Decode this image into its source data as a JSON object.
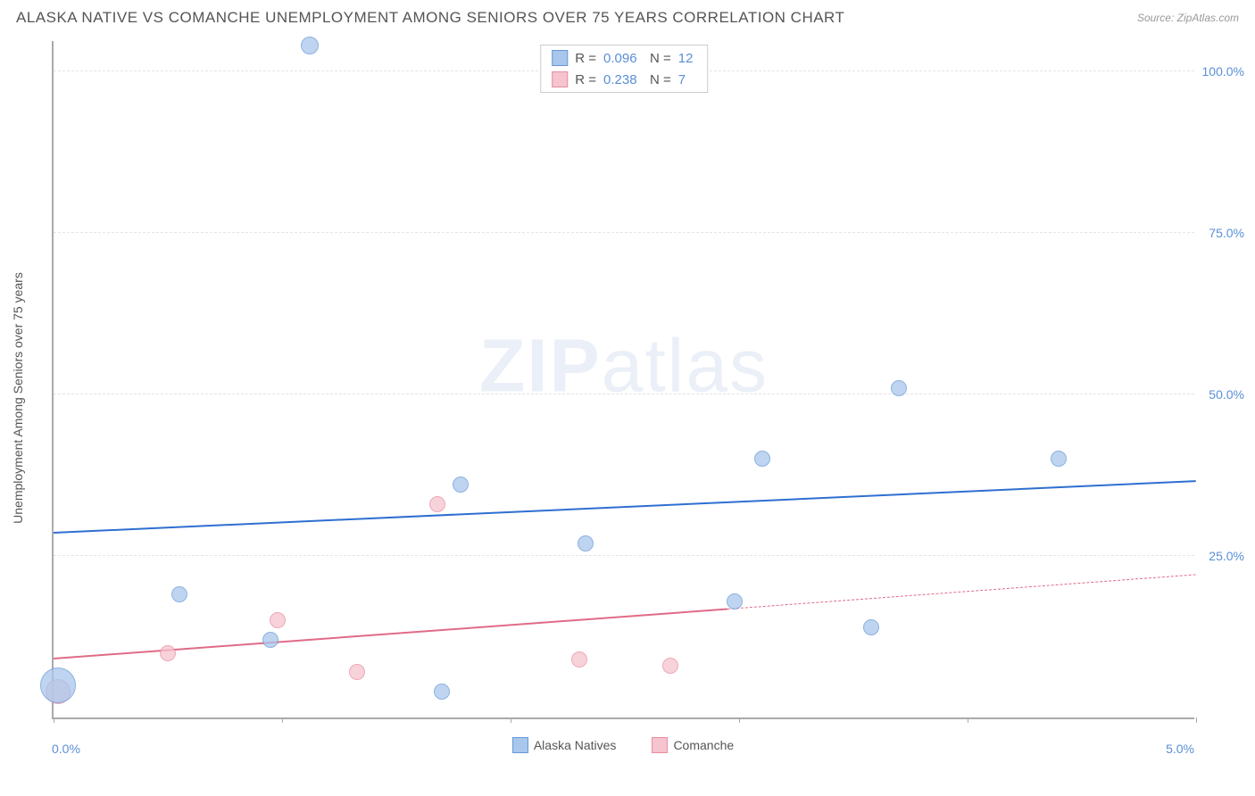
{
  "header": {
    "title": "ALASKA NATIVE VS COMANCHE UNEMPLOYMENT AMONG SENIORS OVER 75 YEARS CORRELATION CHART",
    "source": "Source: ZipAtlas.com"
  },
  "chart": {
    "type": "scatter",
    "y_axis_label": "Unemployment Among Seniors over 75 years",
    "xlim": [
      0,
      5
    ],
    "ylim": [
      0,
      105
    ],
    "x_ticks": [
      0,
      1,
      2,
      3,
      4,
      5
    ],
    "x_tick_labels": [
      "0.0%",
      "5.0%"
    ],
    "y_ticks": [
      25,
      50,
      75,
      100
    ],
    "y_tick_labels": [
      "25.0%",
      "50.0%",
      "75.0%",
      "100.0%"
    ],
    "grid_color": "#e5e5e5",
    "axis_color": "#aaaaaa",
    "background_color": "#ffffff",
    "tick_label_color": "#5a8fd6",
    "watermark": "ZIPatlas",
    "series": [
      {
        "name": "Alaska Natives",
        "fill": "#a9c6ec",
        "stroke": "#6699d8",
        "r_value": "0.096",
        "n_value": "12",
        "trend": {
          "x1": 0,
          "y1": 28.5,
          "x2": 5,
          "y2": 36.5,
          "color": "#2f6fd0",
          "solid_until_x": 5
        },
        "points": [
          {
            "x": 0.02,
            "y": 5,
            "r": 20
          },
          {
            "x": 0.55,
            "y": 19,
            "r": 9
          },
          {
            "x": 0.95,
            "y": 12,
            "r": 9
          },
          {
            "x": 1.12,
            "y": 104,
            "r": 10
          },
          {
            "x": 1.7,
            "y": 4,
            "r": 9
          },
          {
            "x": 1.78,
            "y": 36,
            "r": 9
          },
          {
            "x": 2.33,
            "y": 27,
            "r": 9
          },
          {
            "x": 2.98,
            "y": 18,
            "r": 9
          },
          {
            "x": 3.1,
            "y": 40,
            "r": 9
          },
          {
            "x": 3.58,
            "y": 14,
            "r": 9
          },
          {
            "x": 3.7,
            "y": 51,
            "r": 9
          },
          {
            "x": 4.4,
            "y": 40,
            "r": 9
          }
        ]
      },
      {
        "name": "Comanche",
        "fill": "#f5c4ce",
        "stroke": "#e98ca0",
        "r_value": "0.238",
        "n_value": "7",
        "trend": {
          "x1": 0,
          "y1": 9,
          "x2": 5,
          "y2": 22,
          "color": "#e06b86",
          "solid_until_x": 2.95
        },
        "points": [
          {
            "x": 0.02,
            "y": 4,
            "r": 14
          },
          {
            "x": 0.5,
            "y": 10,
            "r": 9
          },
          {
            "x": 0.98,
            "y": 15,
            "r": 9
          },
          {
            "x": 1.33,
            "y": 7,
            "r": 9
          },
          {
            "x": 1.68,
            "y": 33,
            "r": 9
          },
          {
            "x": 2.3,
            "y": 9,
            "r": 9
          },
          {
            "x": 2.7,
            "y": 8,
            "r": 9
          }
        ]
      }
    ],
    "legend_bottom": {
      "series1_label": "Alaska Natives",
      "series2_label": "Comanche"
    },
    "legend_top": {
      "r_label": "R =",
      "n_label": "N ="
    }
  }
}
